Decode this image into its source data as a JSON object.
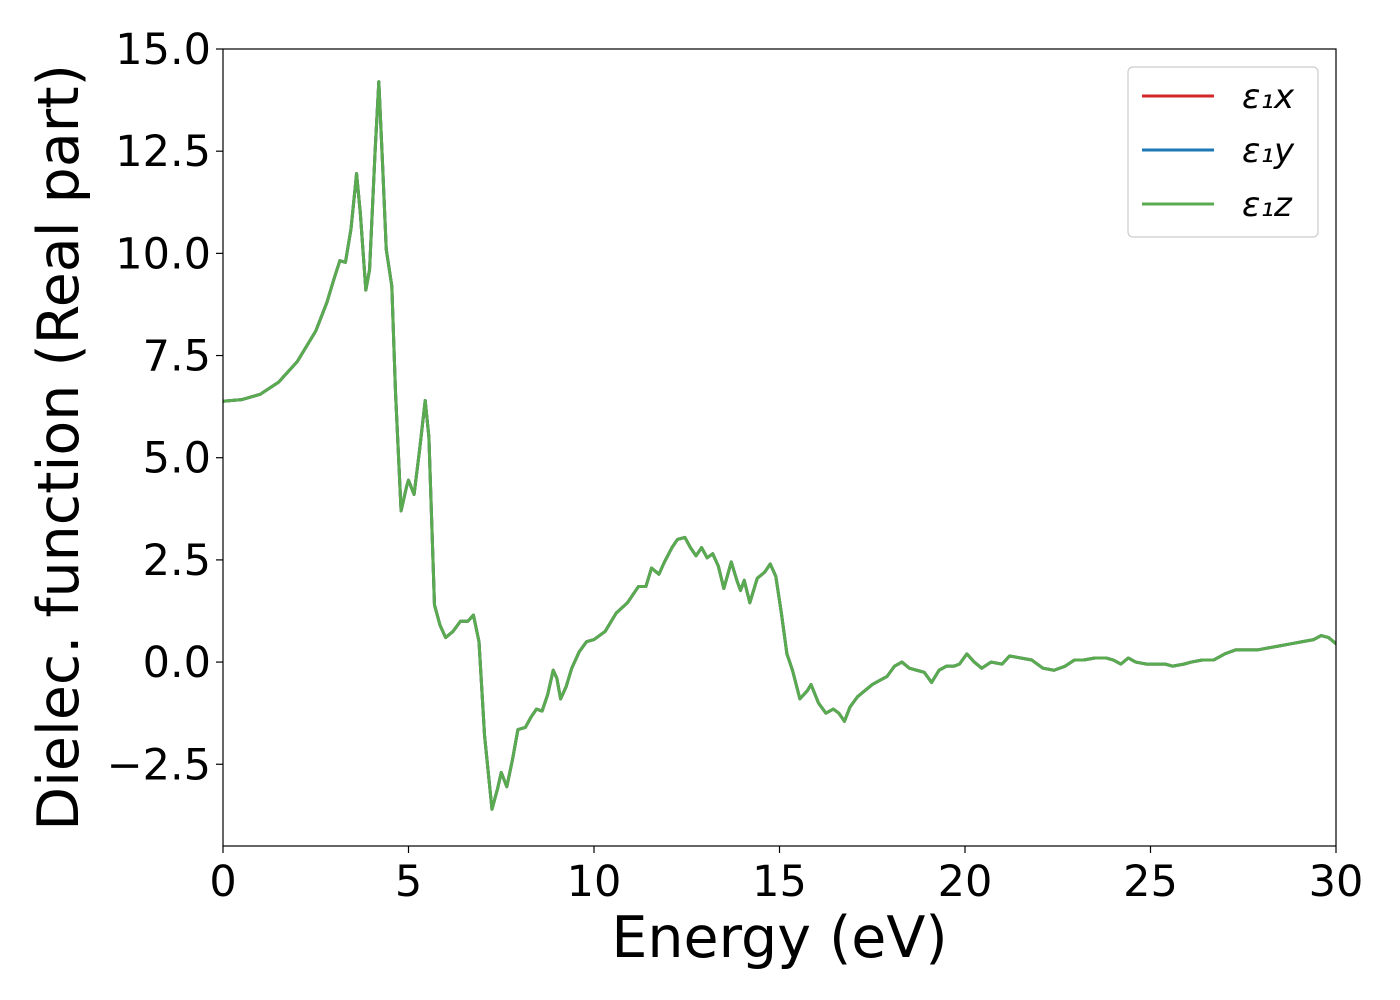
{
  "chart_data": {
    "type": "line",
    "title": "",
    "xlabel": "Energy (eV)",
    "ylabel": "Dielec. function (Real part)",
    "xlim": [
      0,
      30
    ],
    "ylim": [
      -4.5,
      15.0
    ],
    "xticks": [
      0,
      5,
      10,
      15,
      20,
      25,
      30
    ],
    "xtick_labels": [
      "0",
      "5",
      "10",
      "15",
      "20",
      "25",
      "30"
    ],
    "yticks": [
      -2.5,
      0.0,
      2.5,
      5.0,
      7.5,
      10.0,
      12.5,
      15.0
    ],
    "ytick_labels": [
      "−2.5",
      "0.0",
      "2.5",
      "5.0",
      "7.5",
      "10.0",
      "12.5",
      "15.0"
    ],
    "grid": false,
    "legend_position": "top-right",
    "series": [
      {
        "name": "ε₁x",
        "color": "#d62728",
        "points": [
          [
            0,
            6.38
          ],
          [
            0.5,
            6.42
          ],
          [
            1.0,
            6.55
          ],
          [
            1.5,
            6.85
          ],
          [
            2.0,
            7.35
          ],
          [
            2.5,
            8.1
          ],
          [
            2.8,
            8.8
          ],
          [
            3.0,
            9.4
          ],
          [
            3.15,
            9.82
          ],
          [
            3.3,
            9.78
          ],
          [
            3.45,
            10.6
          ],
          [
            3.6,
            11.95
          ],
          [
            3.7,
            11.0
          ],
          [
            3.85,
            9.1
          ],
          [
            3.95,
            9.6
          ],
          [
            4.1,
            12.5
          ],
          [
            4.2,
            14.2
          ],
          [
            4.3,
            12.2
          ],
          [
            4.4,
            10.1
          ],
          [
            4.55,
            9.2
          ],
          [
            4.65,
            6.6
          ],
          [
            4.8,
            3.7
          ],
          [
            4.95,
            4.3
          ],
          [
            5.0,
            4.45
          ],
          [
            5.15,
            4.1
          ],
          [
            5.3,
            5.2
          ],
          [
            5.45,
            6.4
          ],
          [
            5.55,
            5.5
          ],
          [
            5.7,
            1.4
          ],
          [
            5.85,
            0.9
          ],
          [
            6.0,
            0.6
          ],
          [
            6.2,
            0.75
          ],
          [
            6.4,
            1.0
          ],
          [
            6.6,
            1.0
          ],
          [
            6.75,
            1.15
          ],
          [
            6.9,
            0.5
          ],
          [
            7.05,
            -1.8
          ],
          [
            7.25,
            -3.6
          ],
          [
            7.4,
            -3.1
          ],
          [
            7.5,
            -2.7
          ],
          [
            7.65,
            -3.05
          ],
          [
            7.8,
            -2.4
          ],
          [
            7.95,
            -1.65
          ],
          [
            8.15,
            -1.6
          ],
          [
            8.3,
            -1.35
          ],
          [
            8.45,
            -1.15
          ],
          [
            8.6,
            -1.2
          ],
          [
            8.75,
            -0.8
          ],
          [
            8.9,
            -0.2
          ],
          [
            9.0,
            -0.4
          ],
          [
            9.1,
            -0.9
          ],
          [
            9.25,
            -0.6
          ],
          [
            9.4,
            -0.15
          ],
          [
            9.6,
            0.25
          ],
          [
            9.8,
            0.5
          ],
          [
            10.0,
            0.55
          ],
          [
            10.3,
            0.75
          ],
          [
            10.6,
            1.2
          ],
          [
            10.9,
            1.45
          ],
          [
            11.2,
            1.85
          ],
          [
            11.4,
            1.85
          ],
          [
            11.55,
            2.3
          ],
          [
            11.75,
            2.15
          ],
          [
            11.9,
            2.45
          ],
          [
            12.1,
            2.8
          ],
          [
            12.25,
            3.0
          ],
          [
            12.45,
            3.05
          ],
          [
            12.6,
            2.8
          ],
          [
            12.75,
            2.6
          ],
          [
            12.9,
            2.8
          ],
          [
            13.05,
            2.55
          ],
          [
            13.2,
            2.65
          ],
          [
            13.35,
            2.35
          ],
          [
            13.5,
            1.8
          ],
          [
            13.7,
            2.45
          ],
          [
            13.85,
            2.0
          ],
          [
            13.95,
            1.75
          ],
          [
            14.05,
            2.0
          ],
          [
            14.2,
            1.45
          ],
          [
            14.4,
            2.05
          ],
          [
            14.6,
            2.2
          ],
          [
            14.75,
            2.4
          ],
          [
            14.9,
            2.1
          ],
          [
            15.05,
            1.2
          ],
          [
            15.2,
            0.2
          ],
          [
            15.35,
            -0.2
          ],
          [
            15.55,
            -0.9
          ],
          [
            15.75,
            -0.7
          ],
          [
            15.85,
            -0.55
          ],
          [
            16.05,
            -1.0
          ],
          [
            16.25,
            -1.25
          ],
          [
            16.45,
            -1.15
          ],
          [
            16.6,
            -1.25
          ],
          [
            16.75,
            -1.45
          ],
          [
            16.9,
            -1.1
          ],
          [
            17.1,
            -0.85
          ],
          [
            17.3,
            -0.7
          ],
          [
            17.5,
            -0.55
          ],
          [
            17.7,
            -0.45
          ],
          [
            17.9,
            -0.35
          ],
          [
            18.1,
            -0.1
          ],
          [
            18.3,
            0.0
          ],
          [
            18.5,
            -0.15
          ],
          [
            18.7,
            -0.2
          ],
          [
            18.9,
            -0.25
          ],
          [
            19.1,
            -0.5
          ],
          [
            19.3,
            -0.2
          ],
          [
            19.5,
            -0.1
          ],
          [
            19.7,
            -0.1
          ],
          [
            19.85,
            -0.05
          ],
          [
            20.05,
            0.2
          ],
          [
            20.25,
            0.0
          ],
          [
            20.45,
            -0.15
          ],
          [
            20.7,
            0.0
          ],
          [
            21.0,
            -0.05
          ],
          [
            21.2,
            0.15
          ],
          [
            21.5,
            0.1
          ],
          [
            21.8,
            0.05
          ],
          [
            22.1,
            -0.15
          ],
          [
            22.4,
            -0.2
          ],
          [
            22.7,
            -0.1
          ],
          [
            22.95,
            0.05
          ],
          [
            23.2,
            0.05
          ],
          [
            23.5,
            0.1
          ],
          [
            23.8,
            0.1
          ],
          [
            24.0,
            0.05
          ],
          [
            24.2,
            -0.05
          ],
          [
            24.4,
            0.1
          ],
          [
            24.6,
            0.0
          ],
          [
            24.9,
            -0.05
          ],
          [
            25.2,
            -0.05
          ],
          [
            25.4,
            -0.05
          ],
          [
            25.6,
            -0.1
          ],
          [
            25.9,
            -0.05
          ],
          [
            26.1,
            0.0
          ],
          [
            26.4,
            0.05
          ],
          [
            26.7,
            0.05
          ],
          [
            27.0,
            0.2
          ],
          [
            27.3,
            0.3
          ],
          [
            27.6,
            0.3
          ],
          [
            27.9,
            0.3
          ],
          [
            28.2,
            0.35
          ],
          [
            28.5,
            0.4
          ],
          [
            28.8,
            0.45
          ],
          [
            29.1,
            0.5
          ],
          [
            29.4,
            0.55
          ],
          [
            29.6,
            0.65
          ],
          [
            29.8,
            0.6
          ],
          [
            30.0,
            0.45
          ]
        ]
      },
      {
        "name": "ε₁y",
        "color": "#1f77b4",
        "same_as": "ε₁x"
      },
      {
        "name": "ε₁z",
        "color": "#5aaa4f",
        "same_as": "ε₁x"
      }
    ]
  }
}
